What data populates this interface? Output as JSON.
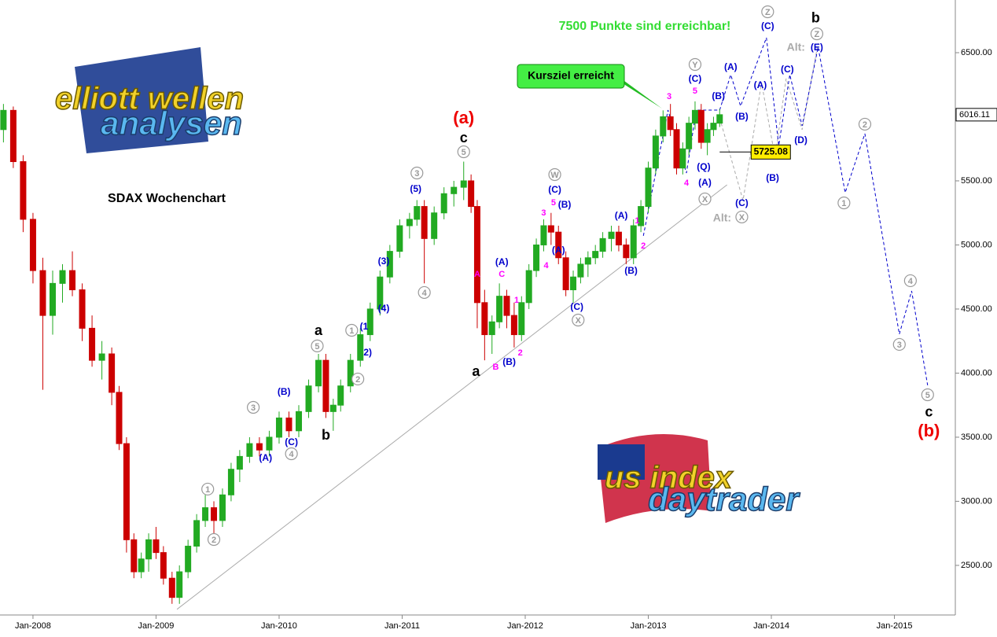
{
  "chart_data": {
    "type": "candlestick",
    "title": "SDAX Wochenchart",
    "headline": "7500 Punkte sind erreichbar!",
    "callout": "Kursziel erreicht",
    "logo_texts": [
      "elliott wellen",
      "analysen",
      "us index",
      "daytrader"
    ],
    "xlim": [
      2007.732,
      2015.495
    ],
    "ylim": [
      2113,
      6911
    ],
    "xticks": [
      {
        "value": 2008,
        "label": "Jan-2008"
      },
      {
        "value": 2009,
        "label": "Jan-2009"
      },
      {
        "value": 2010,
        "label": "Jan-2010"
      },
      {
        "value": 2011,
        "label": "Jan-2011"
      },
      {
        "value": 2012,
        "label": "Jan-2012"
      },
      {
        "value": 2013,
        "label": "Jan-2013"
      },
      {
        "value": 2014,
        "label": "Jan-2014"
      },
      {
        "value": 2015,
        "label": "Jan-2015"
      }
    ],
    "yticks": [
      {
        "value": 2500,
        "label": "2500.00"
      },
      {
        "value": 3000,
        "label": "3000.00"
      },
      {
        "value": 3500,
        "label": "3500.00"
      },
      {
        "value": 4000,
        "label": "4000.00"
      },
      {
        "value": 4500,
        "label": "4500.00"
      },
      {
        "value": 5000,
        "label": "5000.00"
      },
      {
        "value": 5500,
        "label": "5500.00"
      },
      {
        "value": 6000,
        "label": "6000.00"
      },
      {
        "value": 6500,
        "label": "6500.00"
      }
    ],
    "up_color": "#22aa22",
    "down_color": "#cc0000",
    "level_line": 5725.08,
    "candles": {
      "x": [
        2007.76,
        2007.84,
        2007.92,
        2008.0,
        2008.08,
        2008.16,
        2008.24,
        2008.32,
        2008.4,
        2008.48,
        2008.56,
        2008.64,
        2008.7,
        2008.76,
        2008.82,
        2008.88,
        2008.94,
        2009.0,
        2009.06,
        2009.13,
        2009.19,
        2009.26,
        2009.33,
        2009.4,
        2009.47,
        2009.54,
        2009.61,
        2009.68,
        2009.76,
        2009.84,
        2009.92,
        2010.0,
        2010.08,
        2010.16,
        2010.24,
        2010.32,
        2010.38,
        2010.44,
        2010.5,
        2010.58,
        2010.66,
        2010.74,
        2010.82,
        2010.9,
        2010.98,
        2011.06,
        2011.12,
        2011.18,
        2011.26,
        2011.34,
        2011.42,
        2011.5,
        2011.56,
        2011.61,
        2011.67,
        2011.73,
        2011.79,
        2011.85,
        2011.91,
        2011.97,
        2012.03,
        2012.09,
        2012.15,
        2012.21,
        2012.27,
        2012.33,
        2012.39,
        2012.45,
        2012.51,
        2012.57,
        2012.63,
        2012.7,
        2012.76,
        2012.82,
        2012.88,
        2012.94,
        2013.0,
        2013.06,
        2013.12,
        2013.18,
        2013.23,
        2013.28,
        2013.33,
        2013.38,
        2013.43,
        2013.48,
        2013.53,
        2013.58
      ],
      "open": [
        5900,
        6050,
        5650,
        5200,
        4800,
        4450,
        4700,
        4800,
        4650,
        4350,
        4100,
        4150,
        3850,
        3450,
        2700,
        2450,
        2550,
        2700,
        2600,
        2400,
        2250,
        2450,
        2650,
        2850,
        2950,
        2850,
        3050,
        3250,
        3350,
        3450,
        3400,
        3500,
        3650,
        3550,
        3700,
        3900,
        4100,
        3700,
        3750,
        3900,
        4100,
        4300,
        4500,
        4750,
        4950,
        5150,
        5200,
        5300,
        5050,
        5250,
        5400,
        5450,
        5500,
        5300,
        4550,
        4300,
        4400,
        4600,
        4450,
        4300,
        4550,
        4800,
        5000,
        5150,
        5100,
        4900,
        4650,
        4750,
        4850,
        4900,
        4950,
        5050,
        5100,
        5000,
        4900,
        5150,
        5300,
        5600,
        5850,
        6000,
        5900,
        5600,
        5750,
        5950,
        6050,
        5800,
        5900,
        5950
      ],
      "high": [
        6100,
        6080,
        5700,
        5250,
        4900,
        4800,
        4850,
        4950,
        4700,
        4450,
        4250,
        4200,
        3900,
        3500,
        2750,
        2600,
        2750,
        2800,
        2650,
        2450,
        2500,
        2700,
        2900,
        3050,
        3000,
        3100,
        3300,
        3400,
        3500,
        3500,
        3550,
        3700,
        3700,
        3750,
        3950,
        4150,
        4150,
        3800,
        3950,
        4150,
        4350,
        4550,
        4800,
        5000,
        5200,
        5250,
        5350,
        5350,
        5300,
        5450,
        5500,
        5650,
        5550,
        5350,
        4650,
        4450,
        4700,
        4650,
        4550,
        4600,
        4850,
        5050,
        5200,
        5250,
        5150,
        4950,
        4800,
        4900,
        4950,
        5000,
        5100,
        5150,
        5150,
        5050,
        5200,
        5350,
        5650,
        5900,
        6050,
        6100,
        5950,
        5800,
        6000,
        6120,
        6100,
        5950,
        6000,
        6060
      ],
      "low": [
        5800,
        5600,
        5100,
        4700,
        3870,
        4300,
        4550,
        4600,
        4250,
        4050,
        3950,
        3750,
        3400,
        2600,
        2400,
        2400,
        2450,
        2550,
        2350,
        2200,
        2200,
        2400,
        2600,
        2800,
        2750,
        2800,
        3000,
        3150,
        3300,
        3350,
        3350,
        3450,
        3500,
        3500,
        3650,
        3850,
        3650,
        3550,
        3700,
        3850,
        4050,
        4250,
        4450,
        4700,
        4900,
        5050,
        5150,
        4700,
        5000,
        5200,
        5300,
        5350,
        5250,
        4350,
        4100,
        4150,
        4350,
        4350,
        4200,
        4250,
        4500,
        4750,
        4950,
        5000,
        4850,
        4600,
        4550,
        4700,
        4750,
        4850,
        4900,
        4950,
        4950,
        4850,
        4850,
        5100,
        5250,
        5550,
        5800,
        5850,
        5550,
        5550,
        5700,
        5900,
        5750,
        5700,
        5850,
        5920
      ],
      "close": [
        6050,
        5650,
        5200,
        4800,
        4450,
        4700,
        4800,
        4650,
        4350,
        4100,
        4150,
        3850,
        3450,
        2700,
        2450,
        2550,
        2700,
        2600,
        2400,
        2250,
        2450,
        2650,
        2850,
        2950,
        2850,
        3050,
        3250,
        3350,
        3450,
        3400,
        3500,
        3650,
        3550,
        3700,
        3900,
        4100,
        3700,
        3750,
        3900,
        4100,
        4300,
        4500,
        4750,
        4950,
        5150,
        5200,
        5300,
        5050,
        5250,
        5400,
        5450,
        5500,
        5300,
        4550,
        4300,
        4400,
        4600,
        4450,
        4300,
        4550,
        4800,
        5000,
        5150,
        5100,
        4900,
        4650,
        4750,
        4850,
        4900,
        4950,
        5050,
        5100,
        5000,
        4900,
        5150,
        5300,
        5600,
        5850,
        6000,
        5900,
        5600,
        5750,
        5950,
        6050,
        5800,
        5900,
        5950,
        6016.11
      ]
    },
    "lines": [
      {
        "color": "#aaaaaa",
        "dash": false,
        "x": [
          2009.17,
          2013.64
        ],
        "values": [
          2157,
          5469
        ]
      },
      {
        "color": "#aaaaaa",
        "dash": true,
        "x": [
          2013.58,
          2013.77,
          2013.92,
          2014.03,
          2014.12,
          2014.25,
          2014.38
        ],
        "values": [
          5991,
          5347,
          6267,
          5684,
          6298,
          5899,
          6574
        ]
      },
      {
        "color": "#0000cc",
        "dash": true,
        "x": [
          2012.96,
          2013.16,
          2013.31,
          2013.39,
          2013.58,
          2013.67,
          2013.75,
          2013.96,
          2014.06,
          2014.15,
          2014.25,
          2014.38,
          2014.6,
          2014.76,
          2015.04,
          2015.14,
          2015.27
        ],
        "values": [
          5071,
          6052,
          5561,
          6052,
          6052,
          6328,
          6083,
          6617,
          5776,
          6328,
          5929,
          6543,
          5408,
          5868,
          4304,
          4641,
          3905
        ]
      }
    ],
    "annotations": [
      {
        "text": "(a)",
        "x": 2011.5,
        "y": 5991,
        "style": "red"
      },
      {
        "text": "c",
        "x": 2011.5,
        "y": 5837,
        "style": "black"
      },
      {
        "text": "5",
        "x": 2011.5,
        "y": 5727,
        "style": "circle"
      },
      {
        "text": "a",
        "x": 2010.32,
        "y": 4334,
        "style": "black"
      },
      {
        "text": "5",
        "x": 2010.31,
        "y": 4212,
        "style": "circle"
      },
      {
        "text": "b",
        "x": 2010.38,
        "y": 3518,
        "style": "black"
      },
      {
        "text": "a",
        "x": 2011.6,
        "y": 4015,
        "style": "black"
      },
      {
        "text": "3",
        "x": 2009.79,
        "y": 3733,
        "style": "circle"
      },
      {
        "text": "(B)",
        "x": 2010.04,
        "y": 3856,
        "style": "blue"
      },
      {
        "text": "(C)",
        "x": 2010.1,
        "y": 3463,
        "style": "blue"
      },
      {
        "text": "4",
        "x": 2010.1,
        "y": 3371,
        "style": "circle"
      },
      {
        "text": "(A)",
        "x": 2009.89,
        "y": 3340,
        "style": "blue"
      },
      {
        "text": "1",
        "x": 2009.42,
        "y": 3095,
        "style": "circle"
      },
      {
        "text": "2",
        "x": 2009.47,
        "y": 2702,
        "style": "circle"
      },
      {
        "text": "1",
        "x": 2010.59,
        "y": 4334,
        "style": "circle"
      },
      {
        "text": "(1",
        "x": 2010.69,
        "y": 4365,
        "style": "blue"
      },
      {
        "text": "2)",
        "x": 2010.72,
        "y": 4162,
        "style": "blue"
      },
      {
        "text": "2",
        "x": 2010.64,
        "y": 3954,
        "style": "circle"
      },
      {
        "text": "(3)",
        "x": 2010.85,
        "y": 4874,
        "style": "blue"
      },
      {
        "text": "(4)",
        "x": 2010.85,
        "y": 4506,
        "style": "blue"
      },
      {
        "text": "3",
        "x": 2011.12,
        "y": 5561,
        "style": "circle"
      },
      {
        "text": "(5)",
        "x": 2011.11,
        "y": 5439,
        "style": "blue"
      },
      {
        "text": "4",
        "x": 2011.18,
        "y": 4629,
        "style": "circle"
      },
      {
        "text": "A",
        "x": 2011.61,
        "y": 4776,
        "style": "magenta"
      },
      {
        "text": "B",
        "x": 2011.76,
        "y": 4052,
        "style": "magenta"
      },
      {
        "text": "C",
        "x": 2011.81,
        "y": 4776,
        "style": "magenta"
      },
      {
        "text": "(A)",
        "x": 2011.81,
        "y": 4868,
        "style": "blue"
      },
      {
        "text": "1",
        "x": 2011.93,
        "y": 4574,
        "style": "magenta"
      },
      {
        "text": "2",
        "x": 2011.96,
        "y": 4162,
        "style": "magenta"
      },
      {
        "text": "(B)",
        "x": 2011.87,
        "y": 4089,
        "style": "blue"
      },
      {
        "text": "W",
        "x": 2012.24,
        "y": 5549,
        "style": "circle"
      },
      {
        "text": "(C)",
        "x": 2012.24,
        "y": 5433,
        "style": "blue"
      },
      {
        "text": "5",
        "x": 2012.23,
        "y": 5334,
        "style": "magenta"
      },
      {
        "text": "3",
        "x": 2012.15,
        "y": 5255,
        "style": "magenta"
      },
      {
        "text": "(B)",
        "x": 2012.32,
        "y": 5316,
        "style": "blue"
      },
      {
        "text": "4",
        "x": 2012.17,
        "y": 4844,
        "style": "magenta"
      },
      {
        "text": "(A)",
        "x": 2012.27,
        "y": 4960,
        "style": "blue"
      },
      {
        "text": "(C)",
        "x": 2012.42,
        "y": 4518,
        "style": "blue"
      },
      {
        "text": "X",
        "x": 2012.43,
        "y": 4414,
        "style": "circle"
      },
      {
        "text": "(A)",
        "x": 2012.78,
        "y": 5230,
        "style": "blue"
      },
      {
        "text": "(B)",
        "x": 2012.86,
        "y": 4801,
        "style": "blue"
      },
      {
        "text": "1",
        "x": 2012.91,
        "y": 5193,
        "style": "magenta"
      },
      {
        "text": "2",
        "x": 2012.96,
        "y": 4997,
        "style": "magenta"
      },
      {
        "text": "3",
        "x": 2013.17,
        "y": 6163,
        "style": "magenta"
      },
      {
        "text": "Y",
        "x": 2013.38,
        "y": 6408,
        "style": "circle"
      },
      {
        "text": "(C)",
        "x": 2013.38,
        "y": 6298,
        "style": "blue"
      },
      {
        "text": "5",
        "x": 2013.38,
        "y": 6206,
        "style": "magenta"
      },
      {
        "text": "(B)",
        "x": 2013.57,
        "y": 6163,
        "style": "blue"
      },
      {
        "text": "(Q)",
        "x": 2013.45,
        "y": 5610,
        "style": "blue"
      },
      {
        "text": "4",
        "x": 2013.31,
        "y": 5488,
        "style": "magenta"
      },
      {
        "text": "(A)",
        "x": 2013.46,
        "y": 5488,
        "style": "blue"
      },
      {
        "text": "X",
        "x": 2013.46,
        "y": 5359,
        "style": "circle"
      },
      {
        "text": "(C)",
        "x": 2013.76,
        "y": 5328,
        "style": "blue"
      },
      {
        "text": "Alt:",
        "x": 2013.6,
        "y": 5212,
        "style": "gray"
      },
      {
        "text": "X",
        "x": 2013.76,
        "y": 5218,
        "style": "circle"
      },
      {
        "text": "(A)",
        "x": 2013.67,
        "y": 6390,
        "style": "blue"
      },
      {
        "text": "(B)",
        "x": 2013.76,
        "y": 6003,
        "style": "blue"
      },
      {
        "text": "(A)",
        "x": 2013.91,
        "y": 6248,
        "style": "blue"
      },
      {
        "text": "(B)",
        "x": 2014.01,
        "y": 5524,
        "style": "blue"
      },
      {
        "text": "(C)",
        "x": 2014.13,
        "y": 6371,
        "style": "blue"
      },
      {
        "text": "(D)",
        "x": 2014.24,
        "y": 5819,
        "style": "blue"
      },
      {
        "text": "Z",
        "x": 2013.97,
        "y": 6819,
        "style": "circle"
      },
      {
        "text": "(C)",
        "x": 2013.97,
        "y": 6709,
        "style": "blue"
      },
      {
        "text": "b",
        "x": 2014.36,
        "y": 6770,
        "style": "black"
      },
      {
        "text": "Z",
        "x": 2014.37,
        "y": 6647,
        "style": "circle"
      },
      {
        "text": "Alt:",
        "x": 2014.2,
        "y": 6543,
        "style": "gray"
      },
      {
        "text": "(E)",
        "x": 2014.37,
        "y": 6543,
        "style": "blue"
      },
      {
        "text": "1",
        "x": 2014.59,
        "y": 5328,
        "style": "circle"
      },
      {
        "text": "2",
        "x": 2014.76,
        "y": 5942,
        "style": "circle"
      },
      {
        "text": "3",
        "x": 2015.04,
        "y": 4224,
        "style": "circle"
      },
      {
        "text": "4",
        "x": 2015.13,
        "y": 4721,
        "style": "circle"
      },
      {
        "text": "5",
        "x": 2015.27,
        "y": 3831,
        "style": "circle"
      },
      {
        "text": "c",
        "x": 2015.28,
        "y": 3696,
        "style": "black"
      },
      {
        "text": "(b)",
        "x": 2015.28,
        "y": 3549,
        "style": "red"
      }
    ]
  }
}
